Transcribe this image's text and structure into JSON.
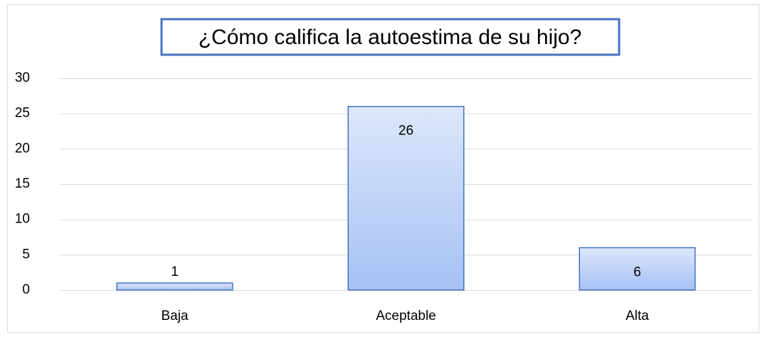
{
  "chart_data": {
    "type": "bar",
    "title": "¿Cómo califica la autoestima de su hijo?",
    "categories": [
      "Baja",
      "Aceptable",
      "Alta"
    ],
    "values": [
      1,
      26,
      6
    ],
    "color": "#4472c4",
    "ylim": [
      0,
      30
    ],
    "yticks": [
      0,
      5,
      10,
      15,
      20,
      25,
      30
    ],
    "grid": true
  }
}
